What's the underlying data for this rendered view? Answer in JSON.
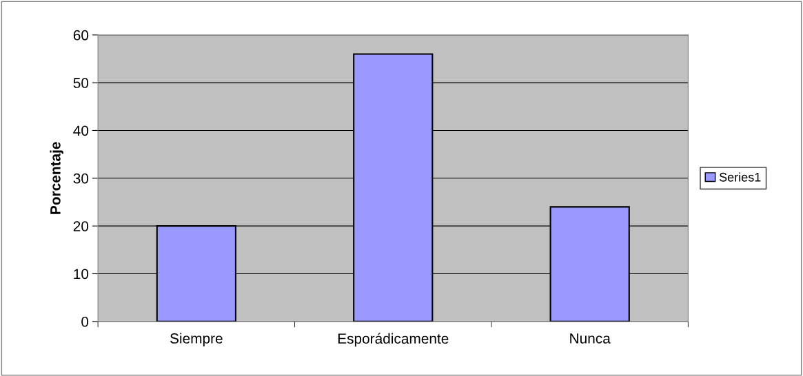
{
  "chart_data": {
    "type": "bar",
    "ylabel": "Porcentaje",
    "categories": [
      "Siempre",
      "Esporádicamente",
      "Nunca"
    ],
    "series": [
      {
        "name": "Series1",
        "color": "#9999ff",
        "values": [
          20,
          56,
          24
        ]
      }
    ],
    "ylim": [
      0,
      60
    ],
    "yticks": [
      0,
      10,
      20,
      30,
      40,
      50,
      60
    ],
    "grid": "y",
    "legend": "right"
  }
}
